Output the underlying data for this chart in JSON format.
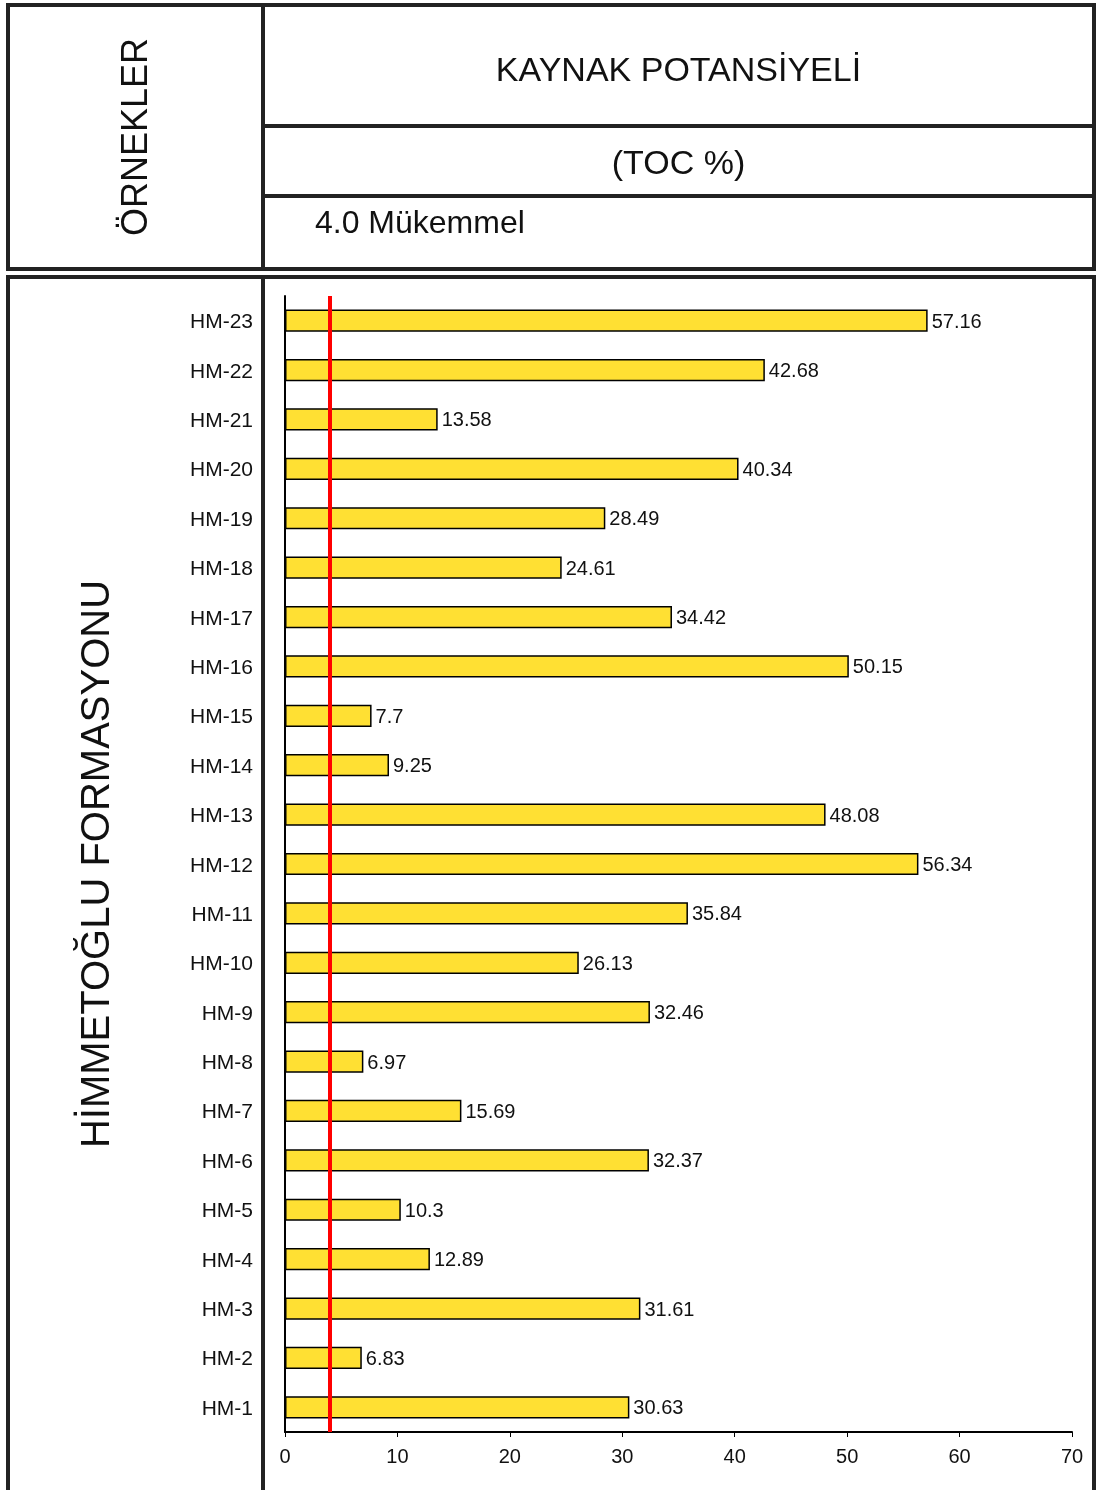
{
  "chart_data": {
    "type": "bar",
    "orientation": "horizontal",
    "title": "KAYNAK POTANSİYELİ",
    "subtitle": "(TOC %)",
    "ylabel": "HİMMETOĞLU FORMASYONU",
    "annotations": [
      "ÖRNEKLER"
    ],
    "categories": [
      "HM-23",
      "HM-22",
      "HM-21",
      "HM-20",
      "HM-19",
      "HM-18",
      "HM-17",
      "HM-16",
      "HM-15",
      "HM-14",
      "HM-13",
      "HM-12",
      "HM-11",
      "HM-10",
      "HM-9",
      "HM-8",
      "HM-7",
      "HM-6",
      "HM-5",
      "HM-4",
      "HM-3",
      "HM-2",
      "HM-1"
    ],
    "values": [
      57.16,
      42.68,
      13.58,
      40.34,
      28.49,
      24.61,
      34.42,
      50.15,
      7.7,
      9.25,
      48.08,
      56.34,
      35.84,
      26.13,
      32.46,
      6.97,
      15.69,
      32.37,
      10.3,
      12.89,
      31.61,
      6.83,
      30.63
    ],
    "color": "#ffe033",
    "data_labels": true,
    "grid": false,
    "xlim": [
      0,
      70
    ],
    "xticks": [
      0,
      10,
      20,
      30,
      40,
      50,
      60,
      70
    ],
    "ref_lines": [
      {
        "axis": "x",
        "value": 4,
        "label": "4.0 Mükemmel",
        "color": "#ff0000"
      }
    ]
  }
}
